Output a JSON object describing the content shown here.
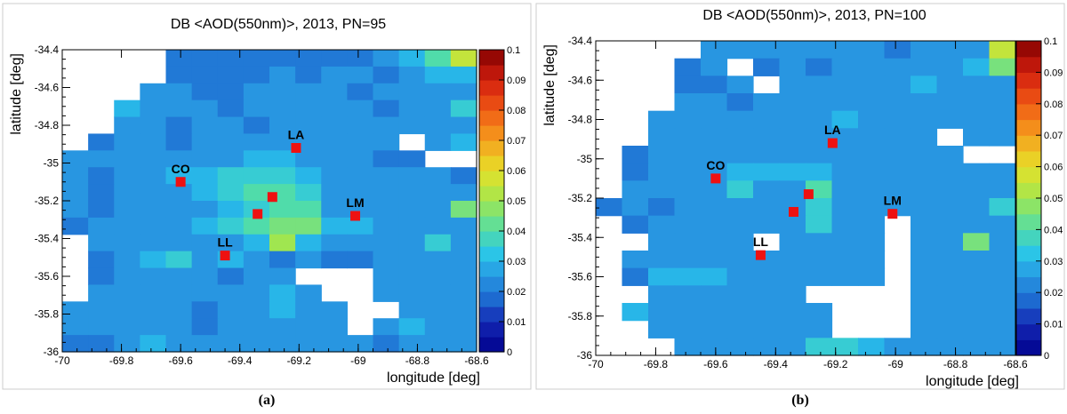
{
  "panels": [
    {
      "caption": "(a)"
    },
    {
      "caption": "(b)"
    }
  ],
  "chart_data": [
    {
      "type": "heatmap",
      "title": "DB <AOD(550nm)>, 2013, PN=95",
      "xlabel": "longitude [deg]",
      "ylabel": "latitude [deg]",
      "xlim": [
        -70,
        -68.6
      ],
      "ylim": [
        -36,
        -34.4
      ],
      "xticks": [
        -70,
        -69.8,
        -69.6,
        -69.4,
        -69.2,
        -69,
        -68.8,
        -68.6
      ],
      "xtick_labels": [
        "-70",
        "-69.8",
        "-69.6",
        "-69.4",
        "-69.2",
        "-69",
        "-68.8",
        "-68.6"
      ],
      "yticks": [
        -36,
        -35.8,
        -35.6,
        -35.4,
        -35.2,
        -35,
        -34.8,
        -34.6,
        -34.4
      ],
      "ytick_labels": [
        "-36",
        "-35.8",
        "-35.6",
        "-35.4",
        "-35.2",
        "-35",
        "-34.8",
        "-34.6",
        "-34.4"
      ],
      "colorbar": {
        "min": 0,
        "max": 0.1,
        "ticks": [
          0,
          0.01,
          0.02,
          0.03,
          0.04,
          0.05,
          0.06,
          0.07,
          0.08,
          0.09,
          0.1
        ],
        "tick_labels": [
          "0",
          "0.01",
          "0.02",
          "0.03",
          "0.04",
          "0.05",
          "0.06",
          "0.07",
          "0.08",
          "0.09",
          "0.1"
        ]
      },
      "grid": {
        "nx": 16,
        "ny": 18,
        "x0": -70,
        "y0": -36,
        "dx": 0.0875,
        "dy": 0.0889
      },
      "cells": [
        "---------------------------------------------------------------------------------------------------",
        "                                    "
      ],
      "rows": [
        [
          null,
          null,
          null,
          null,
          0.02,
          0.02,
          0.02,
          0.02,
          0.02,
          0.02,
          0.02,
          0.02,
          0.025,
          0.03,
          0.04,
          0.055
        ],
        [
          null,
          null,
          null,
          null,
          0.02,
          0.02,
          0.02,
          0.02,
          0.025,
          0.02,
          0.025,
          0.025,
          0.02,
          0.025,
          0.03,
          0.03
        ],
        [
          null,
          null,
          null,
          0.025,
          0.025,
          0.02,
          0.02,
          0.025,
          0.025,
          0.025,
          0.025,
          0.02,
          0.025,
          0.025,
          0.025,
          0.025
        ],
        [
          null,
          null,
          0.03,
          0.025,
          0.025,
          0.025,
          0.02,
          0.025,
          0.025,
          0.025,
          0.025,
          0.025,
          0.02,
          0.025,
          0.025,
          0.035
        ],
        [
          null,
          null,
          0.025,
          0.025,
          0.02,
          0.025,
          0.025,
          0.02,
          0.025,
          0.025,
          0.025,
          0.025,
          0.025,
          0.025,
          0.025,
          0.025
        ],
        [
          null,
          0.02,
          0.025,
          0.025,
          0.02,
          0.025,
          0.025,
          0.025,
          0.025,
          0.025,
          0.025,
          0.025,
          0.025,
          null,
          0.025,
          0.03
        ],
        [
          0.025,
          0.025,
          0.025,
          0.025,
          0.025,
          0.025,
          0.025,
          0.03,
          0.03,
          0.025,
          0.025,
          0.025,
          0.02,
          0.02,
          null,
          null
        ],
        [
          0.025,
          0.02,
          0.025,
          0.025,
          0.03,
          0.03,
          0.035,
          0.035,
          0.035,
          0.03,
          0.025,
          0.025,
          0.025,
          0.025,
          0.025,
          0.02
        ],
        [
          0.025,
          0.02,
          0.025,
          0.025,
          0.025,
          0.03,
          0.035,
          0.04,
          0.04,
          0.035,
          0.025,
          0.025,
          0.025,
          0.025,
          0.025,
          0.025
        ],
        [
          0.025,
          0.02,
          0.025,
          0.025,
          0.025,
          0.025,
          0.03,
          0.035,
          0.04,
          0.04,
          0.025,
          0.025,
          0.025,
          0.025,
          0.025,
          0.045
        ],
        [
          0.02,
          0.025,
          0.025,
          0.025,
          0.025,
          0.03,
          0.035,
          0.04,
          0.045,
          0.045,
          0.03,
          0.03,
          0.025,
          0.025,
          0.025,
          0.025
        ],
        [
          null,
          0.025,
          0.025,
          0.025,
          0.025,
          0.025,
          0.025,
          0.03,
          0.05,
          0.03,
          0.025,
          0.025,
          0.025,
          0.025,
          0.035,
          0.025
        ],
        [
          null,
          0.02,
          0.025,
          0.03,
          0.035,
          0.025,
          0.03,
          0.025,
          0.02,
          0.025,
          0.02,
          0.02,
          0.025,
          0.025,
          0.025,
          0.025
        ],
        [
          null,
          0.02,
          0.025,
          0.025,
          0.025,
          0.025,
          0.02,
          0.025,
          0.025,
          null,
          null,
          null,
          0.025,
          0.025,
          0.025,
          0.025
        ],
        [
          null,
          0.025,
          0.025,
          0.025,
          0.025,
          0.025,
          0.025,
          0.025,
          0.03,
          0.025,
          null,
          null,
          0.025,
          0.025,
          0.025,
          0.025
        ],
        [
          0.025,
          0.025,
          0.025,
          0.025,
          0.025,
          0.02,
          0.025,
          0.025,
          0.03,
          0.025,
          0.025,
          null,
          null,
          0.025,
          0.025,
          0.025
        ],
        [
          0.025,
          0.025,
          0.025,
          0.025,
          0.025,
          0.02,
          0.025,
          0.025,
          0.025,
          0.025,
          0.025,
          null,
          0.025,
          0.03,
          0.025,
          0.025
        ],
        [
          0.02,
          0.02,
          0.025,
          0.03,
          0.025,
          0.025,
          0.025,
          0.025,
          0.025,
          0.025,
          0.025,
          0.025,
          0.02,
          0.025,
          0.025,
          0.025
        ]
      ],
      "sites": [
        {
          "label": "LA",
          "lon": -69.21,
          "lat": -34.92
        },
        {
          "label": "CO",
          "lon": -69.6,
          "lat": -35.1
        },
        {
          "label": "LM",
          "lon": -69.01,
          "lat": -35.28
        },
        {
          "label": "LL",
          "lon": -69.45,
          "lat": -35.49
        },
        {
          "label": "",
          "lon": -69.29,
          "lat": -35.18
        },
        {
          "label": "",
          "lon": -69.34,
          "lat": -35.27
        }
      ]
    },
    {
      "type": "heatmap",
      "title": "DB <AOD(550nm)>, 2013, PN=100",
      "xlabel": "longitude [deg]",
      "ylabel": "latitude [deg]",
      "xlim": [
        -70,
        -68.6
      ],
      "ylim": [
        -36,
        -34.4
      ],
      "xticks": [
        -70,
        -69.8,
        -69.6,
        -69.4,
        -69.2,
        -69,
        -68.8,
        -68.6
      ],
      "xtick_labels": [
        "-70",
        "-69.8",
        "-69.6",
        "-69.4",
        "-69.2",
        "-69",
        "-68.8",
        "-68.6"
      ],
      "yticks": [
        -36,
        -35.8,
        -35.6,
        -35.4,
        -35.2,
        -35,
        -34.8,
        -34.6,
        -34.4
      ],
      "ytick_labels": [
        "-36",
        "-35.8",
        "-35.6",
        "-35.4",
        "-35.2",
        "-35",
        "-34.8",
        "-34.6",
        "-34.4"
      ],
      "colorbar": {
        "min": 0,
        "max": 0.1,
        "ticks": [
          0,
          0.01,
          0.02,
          0.03,
          0.04,
          0.05,
          0.06,
          0.07,
          0.08,
          0.09,
          0.1
        ],
        "tick_labels": [
          "0",
          "0.01",
          "0.02",
          "0.03",
          "0.04",
          "0.05",
          "0.06",
          "0.07",
          "0.08",
          "0.09",
          "0.1"
        ]
      },
      "grid": {
        "nx": 16,
        "ny": 18,
        "x0": -70,
        "y0": -36,
        "dx": 0.0875,
        "dy": 0.0889
      },
      "rows": [
        [
          null,
          null,
          null,
          null,
          0.025,
          0.025,
          0.025,
          0.025,
          0.025,
          0.025,
          0.025,
          0.02,
          0.025,
          0.025,
          0.025,
          0.055
        ],
        [
          null,
          null,
          null,
          0.02,
          0.025,
          null,
          0.02,
          0.025,
          0.02,
          0.025,
          0.025,
          0.025,
          0.025,
          0.025,
          0.03,
          0.045
        ],
        [
          null,
          null,
          null,
          0.02,
          0.02,
          0.025,
          null,
          0.025,
          0.025,
          0.025,
          0.025,
          0.025,
          0.03,
          0.025,
          0.025,
          0.025
        ],
        [
          null,
          null,
          null,
          0.025,
          0.025,
          0.02,
          0.025,
          0.025,
          0.025,
          0.025,
          0.025,
          0.025,
          0.025,
          0.025,
          0.025,
          0.025
        ],
        [
          null,
          null,
          0.025,
          0.025,
          0.025,
          0.025,
          0.025,
          0.025,
          0.025,
          0.03,
          0.025,
          0.025,
          0.025,
          0.025,
          0.025,
          0.025
        ],
        [
          null,
          null,
          0.025,
          0.025,
          0.025,
          0.025,
          0.025,
          0.025,
          0.025,
          0.025,
          0.025,
          0.025,
          0.025,
          null,
          0.025,
          0.025
        ],
        [
          null,
          0.02,
          0.025,
          0.025,
          0.025,
          0.025,
          0.025,
          0.025,
          0.025,
          0.025,
          0.025,
          0.025,
          0.025,
          0.025,
          null,
          null
        ],
        [
          null,
          0.02,
          0.025,
          0.025,
          0.025,
          0.03,
          0.03,
          0.03,
          0.03,
          0.025,
          0.025,
          0.025,
          0.025,
          0.025,
          0.025,
          0.025
        ],
        [
          null,
          0.025,
          0.025,
          0.025,
          0.025,
          0.035,
          0.025,
          0.025,
          0.04,
          0.025,
          0.025,
          0.025,
          0.025,
          0.025,
          0.025,
          0.025
        ],
        [
          0.02,
          0.025,
          0.02,
          0.025,
          0.025,
          0.025,
          0.025,
          0.025,
          0.035,
          0.025,
          0.025,
          0.025,
          0.025,
          0.025,
          0.025,
          0.035
        ],
        [
          null,
          0.02,
          0.025,
          0.025,
          0.025,
          0.025,
          0.025,
          0.025,
          0.035,
          0.025,
          0.025,
          null,
          0.025,
          0.025,
          0.025,
          0.025
        ],
        [
          null,
          null,
          0.025,
          0.025,
          0.025,
          0.025,
          null,
          0.025,
          0.025,
          0.025,
          0.025,
          null,
          0.025,
          0.025,
          0.045,
          0.025
        ],
        [
          null,
          0.025,
          0.025,
          0.025,
          0.025,
          0.025,
          0.025,
          0.025,
          0.025,
          0.025,
          0.025,
          null,
          0.025,
          0.025,
          0.025,
          0.025
        ],
        [
          null,
          0.02,
          0.03,
          0.03,
          0.03,
          0.025,
          0.025,
          0.025,
          0.025,
          0.025,
          0.025,
          null,
          0.025,
          0.025,
          0.025,
          0.025
        ],
        [
          null,
          null,
          0.025,
          0.025,
          0.025,
          0.025,
          0.025,
          0.025,
          null,
          null,
          null,
          null,
          0.025,
          0.025,
          0.025,
          0.025
        ],
        [
          null,
          0.03,
          0.025,
          0.025,
          0.025,
          0.025,
          0.025,
          0.025,
          0.025,
          null,
          null,
          null,
          0.025,
          0.025,
          0.025,
          0.025
        ],
        [
          null,
          null,
          0.025,
          0.025,
          0.025,
          0.025,
          0.025,
          0.025,
          0.025,
          null,
          null,
          null,
          0.025,
          0.025,
          0.025,
          0.025
        ],
        [
          null,
          null,
          null,
          0.025,
          0.025,
          0.025,
          0.025,
          0.025,
          0.035,
          0.035,
          0.03,
          0.025,
          0.025,
          0.025,
          0.025,
          0.025
        ]
      ],
      "sites": [
        {
          "label": "LA",
          "lon": -69.21,
          "lat": -34.92
        },
        {
          "label": "CO",
          "lon": -69.6,
          "lat": -35.1
        },
        {
          "label": "LM",
          "lon": -69.01,
          "lat": -35.28
        },
        {
          "label": "LL",
          "lon": -69.45,
          "lat": -35.49
        },
        {
          "label": "",
          "lon": -69.29,
          "lat": -35.18
        },
        {
          "label": "",
          "lon": -69.34,
          "lat": -35.27
        }
      ]
    }
  ]
}
